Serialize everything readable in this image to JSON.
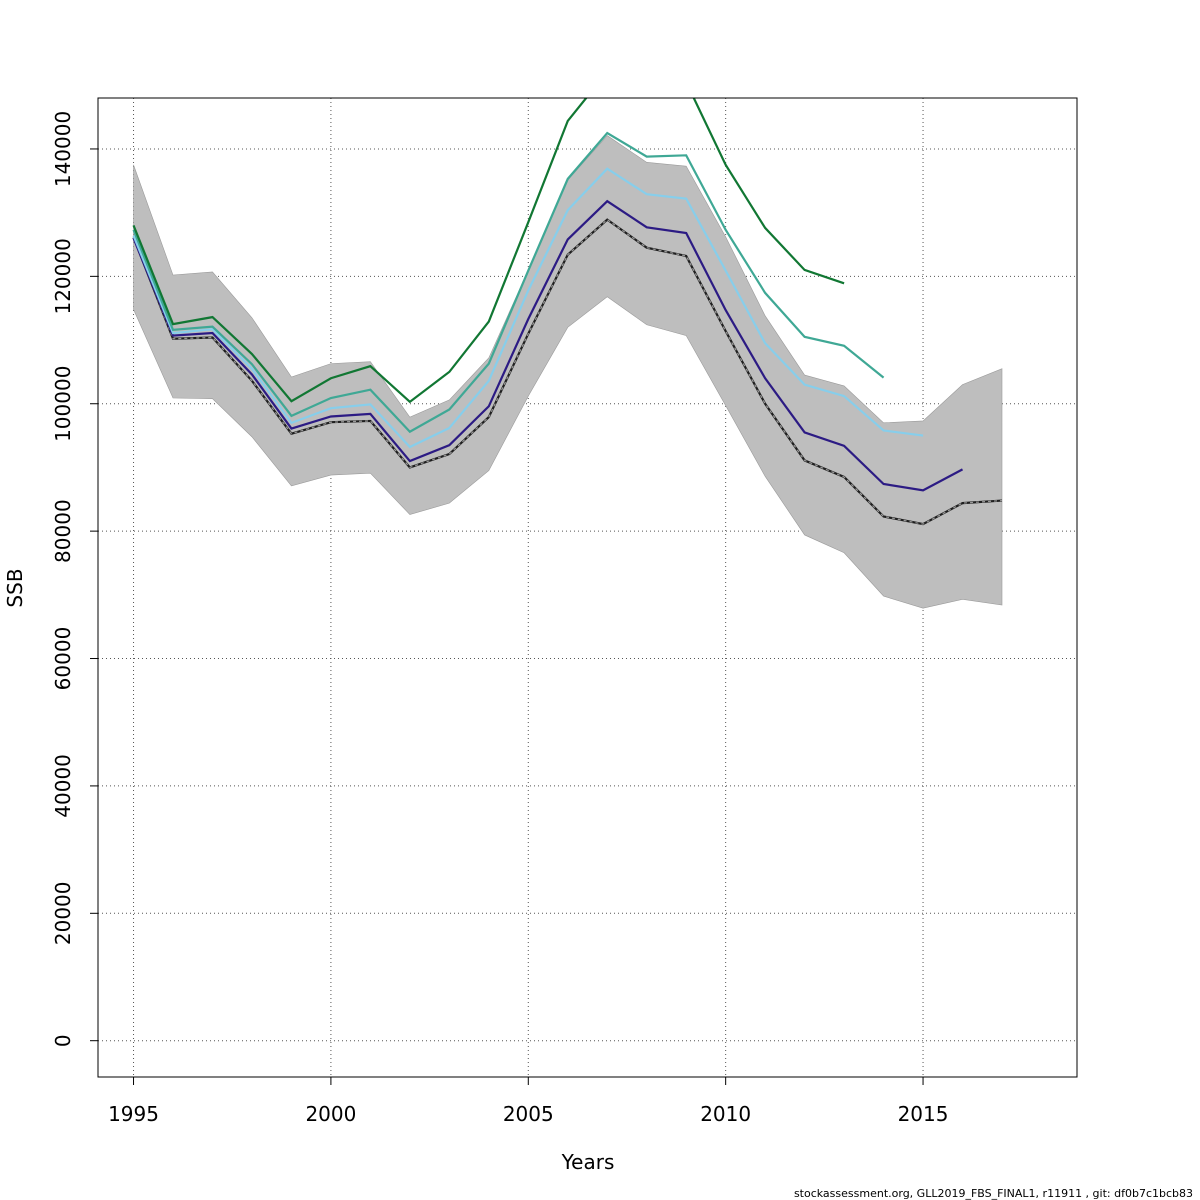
{
  "chart_data": {
    "type": "line",
    "xlabel": "Years",
    "ylabel": "SSB",
    "xlim": [
      1994.1,
      2018.9
    ],
    "ylim": [
      -5700,
      148000
    ],
    "grid": true,
    "x_ticks": [
      1995,
      2000,
      2005,
      2010,
      2015
    ],
    "y_ticks": [
      0,
      20000,
      40000,
      60000,
      80000,
      100000,
      120000,
      140000
    ],
    "x_tick_labels": [
      "1995",
      "2000",
      "2005",
      "2010",
      "2015"
    ],
    "y_tick_labels": [
      "0",
      "20000",
      "40000",
      "60000",
      "80000",
      "100000",
      "120000",
      "140000"
    ],
    "band": {
      "color": "#bebebe",
      "x": [
        1995,
        1996,
        1997,
        1998,
        1999,
        2000,
        2001,
        2002,
        2003,
        2004,
        2005,
        2006,
        2007,
        2008,
        2009,
        2010,
        2011,
        2012,
        2013,
        2014,
        2015,
        2016,
        2017
      ],
      "upper": [
        137500,
        120200,
        120700,
        113500,
        104200,
        106300,
        106600,
        97900,
        100600,
        107200,
        121000,
        135100,
        142100,
        137900,
        137300,
        126200,
        113800,
        104500,
        102800,
        97000,
        97300,
        103000,
        105500
      ],
      "lower": [
        114800,
        100900,
        100800,
        94800,
        87100,
        88800,
        89100,
        82600,
        84400,
        89500,
        101200,
        112000,
        116800,
        112400,
        110700,
        99700,
        88600,
        79400,
        76600,
        69800,
        67900,
        69300,
        68400
      ]
    },
    "series": [
      {
        "color": "#1f1f1f",
        "dashed": true,
        "x": [
          1995,
          1996,
          1997,
          1998,
          1999,
          2000,
          2001,
          2002,
          2003,
          2004,
          2005,
          2006,
          2007,
          2008,
          2009,
          2010,
          2011,
          2012,
          2013,
          2014,
          2015,
          2016,
          2017
        ],
        "values": [
          126100,
          110200,
          110400,
          103600,
          95300,
          97100,
          97300,
          90000,
          92100,
          97900,
          111000,
          123400,
          128900,
          124500,
          123200,
          111400,
          100000,
          91100,
          88500,
          82300,
          81100,
          84400,
          84800
        ]
      },
      {
        "color": "#2c1b84",
        "x": [
          1995,
          1996,
          1997,
          1998,
          1999,
          2000,
          2001,
          2002,
          2003,
          2004,
          2005,
          2006,
          2007,
          2008,
          2009,
          2010,
          2011,
          2012,
          2013,
          2014,
          2015,
          2016
        ],
        "values": [
          126000,
          110700,
          111100,
          104600,
          96100,
          98000,
          98400,
          91000,
          93500,
          99600,
          113300,
          125800,
          131800,
          127700,
          126800,
          114700,
          104000,
          95500,
          93400,
          87400,
          86400,
          89700
        ]
      },
      {
        "color": "#87ceeb",
        "x": [
          1995,
          1996,
          1997,
          1998,
          1999,
          2000,
          2001,
          2002,
          2003,
          2004,
          2005,
          2006,
          2007,
          2008,
          2009,
          2010,
          2011,
          2012,
          2013,
          2014,
          2015
        ],
        "values": [
          126400,
          111100,
          111700,
          105500,
          97000,
          99300,
          99900,
          93200,
          96200,
          103600,
          117800,
          130400,
          136900,
          132900,
          132200,
          120900,
          109500,
          103000,
          101200,
          95800,
          95000
        ]
      },
      {
        "color": "#3fa895",
        "x": [
          1995,
          1996,
          1997,
          1998,
          1999,
          2000,
          2001,
          2002,
          2003,
          2004,
          2005,
          2006,
          2007,
          2008,
          2009,
          2010,
          2011,
          2012,
          2013,
          2014
        ],
        "values": [
          127300,
          111600,
          112100,
          106200,
          98100,
          100900,
          102200,
          95600,
          99100,
          106300,
          120900,
          135300,
          142500,
          138800,
          139000,
          127300,
          117400,
          110500,
          109100,
          104100
        ]
      },
      {
        "color": "#117733",
        "x": [
          1995,
          1996,
          1997,
          1998,
          1999,
          2000,
          2001,
          2002,
          2003,
          2004,
          2005,
          2006,
          2007,
          2008,
          2009,
          2010,
          2011,
          2012,
          2013
        ],
        "values": [
          128000,
          112500,
          113600,
          107800,
          100400,
          104000,
          105900,
          100300,
          105000,
          112900,
          128500,
          144400,
          152100,
          151800,
          150500,
          137500,
          127600,
          121000,
          118900
        ]
      }
    ]
  },
  "footer": {
    "note": "stockassessment.org, GLL2019_FBS_FINAL1, r11911 , git: df0b7c1bcb83"
  }
}
